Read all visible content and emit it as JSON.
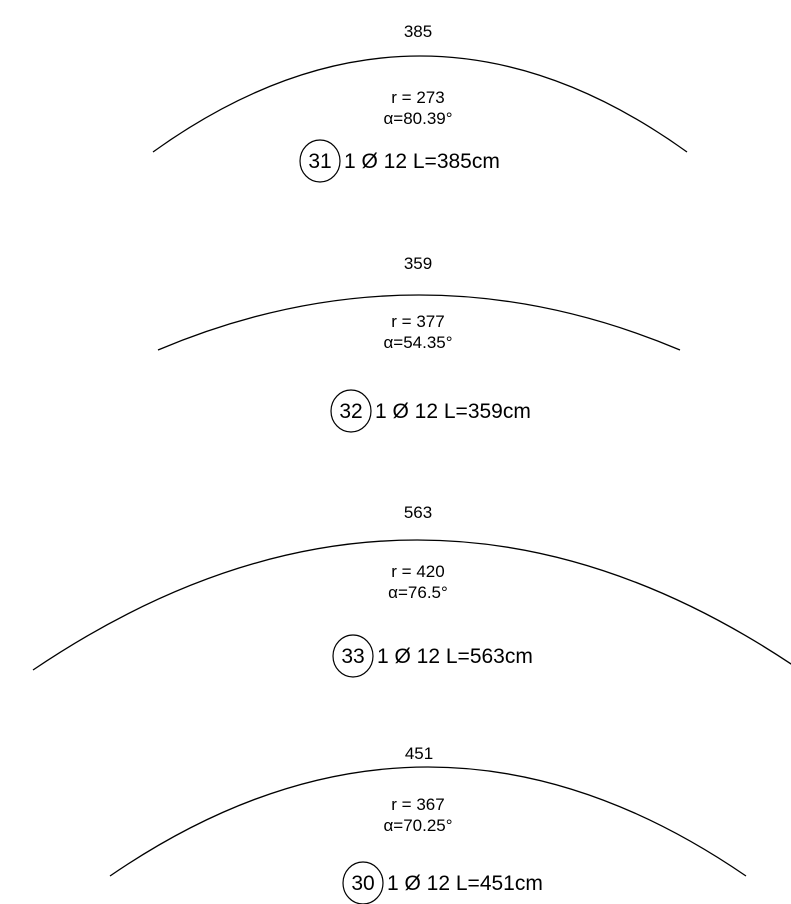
{
  "bars": [
    {
      "length_label": "385",
      "radius_label": "r = 273",
      "angle_label": "α=80.39°",
      "mark": "31",
      "description": "1 Ø 12  L=385cm"
    },
    {
      "length_label": "359",
      "radius_label": "r = 377",
      "angle_label": "α=54.35°",
      "mark": "32",
      "description": "1 Ø 12  L=359cm"
    },
    {
      "length_label": "563",
      "radius_label": "r = 420",
      "angle_label": "α=76.5°",
      "mark": "33",
      "description": "1 Ø 12  L=563cm"
    },
    {
      "length_label": "451",
      "radius_label": "r = 367",
      "angle_label": "α=70.25°",
      "mark": "30",
      "description": "1 Ø 12  L=451cm"
    }
  ]
}
